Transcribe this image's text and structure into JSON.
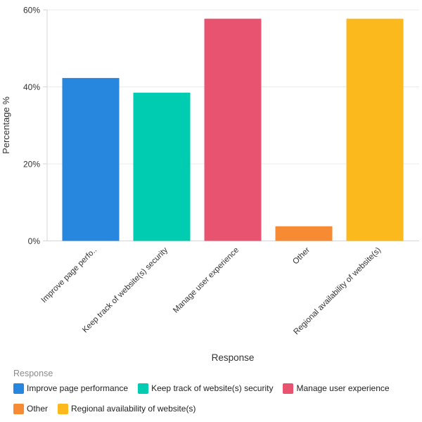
{
  "chart_data": {
    "type": "bar",
    "title": "",
    "xlabel": "Response",
    "ylabel": "Percentage %",
    "categories": [
      "Improve page performance",
      "Keep track of website(s) security",
      "Manage user experience",
      "Other",
      "Regional availability of website(s)"
    ],
    "x_tick_labels": [
      "Improve page perfo..",
      "Keep track of website(s) security",
      "Manage user experience",
      "Other",
      "Regional availability of website(s)"
    ],
    "values": [
      42.3,
      38.5,
      57.7,
      3.8,
      57.7
    ],
    "unit": "%",
    "ylim": [
      0,
      60
    ],
    "yticks": [
      0,
      20,
      40,
      60
    ],
    "ytick_labels": [
      "0%",
      "20%",
      "40%",
      "60%"
    ],
    "grid": true,
    "bar_colors": [
      "#2786DE",
      "#00CCB1",
      "#E85470",
      "#F78B33",
      "#FBB91E"
    ],
    "legend": {
      "position": "bottom-left",
      "title": "Response",
      "entries": [
        {
          "label": "Improve page performance",
          "color": "#2786DE"
        },
        {
          "label": "Keep track of website(s) security",
          "color": "#00CCB1"
        },
        {
          "label": "Manage user experience",
          "color": "#E85470"
        },
        {
          "label": "Other",
          "color": "#F78B33"
        },
        {
          "label": "Regional availability of website(s)",
          "color": "#FBB91E"
        }
      ]
    }
  },
  "style": {
    "background": "#ffffff",
    "grid_color": "#ebebeb",
    "axis_color": "#d6d6d6",
    "text_color": "#333333",
    "legend_title_color": "#8b8b8b"
  }
}
